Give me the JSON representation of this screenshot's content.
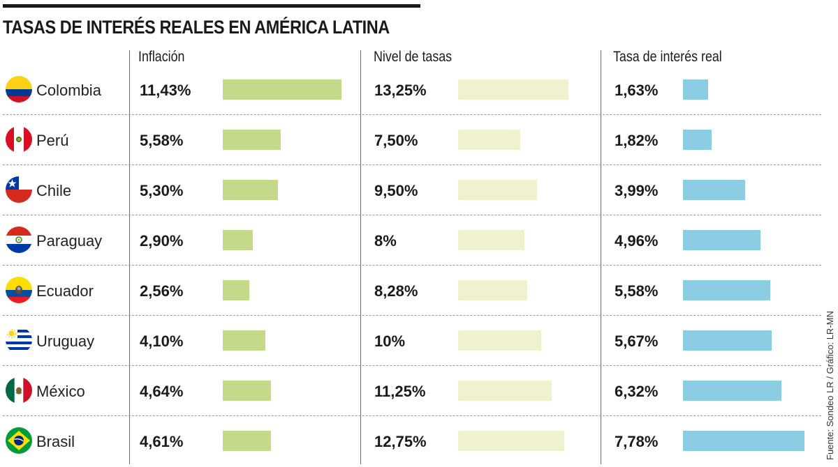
{
  "chart_data": {
    "type": "bar",
    "title": "TASAS DE INTERÉS REALES EN AMÉRICA LATINA",
    "stub_header": "",
    "categories": [
      "Colombia",
      "Perú",
      "Chile",
      "Paraguay",
      "Ecuador",
      "Uruguay",
      "México",
      "Brasil"
    ],
    "flag_icons": [
      "colombia-flag-icon",
      "peru-flag-icon",
      "chile-flag-icon",
      "paraguay-flag-icon",
      "ecuador-flag-icon",
      "uruguay-flag-icon",
      "mexico-flag-icon",
      "brazil-flag-icon"
    ],
    "series": [
      {
        "name": "Inflación",
        "color": "#c5d98a",
        "values": [
          11.43,
          5.58,
          5.3,
          2.9,
          2.56,
          4.1,
          4.64,
          4.61
        ],
        "labels": [
          "11,43%",
          "5,58%",
          "5,30%",
          "2,90%",
          "2,56%",
          "4,10%",
          "4,64%",
          "4,61%"
        ]
      },
      {
        "name": "Nivel de tasas",
        "color": "#eff2cd",
        "values": [
          13.25,
          7.5,
          9.5,
          8.0,
          8.28,
          10.0,
          11.25,
          12.75
        ],
        "labels": [
          "13,25%",
          "7,50%",
          "9,50%",
          "8%",
          "8,28%",
          "10%",
          "11,25%",
          "12,75%"
        ]
      },
      {
        "name": "Tasa de interés real",
        "color": "#8ccde3",
        "values": [
          1.63,
          1.82,
          3.99,
          4.96,
          5.58,
          5.67,
          6.32,
          7.78
        ],
        "labels": [
          "1,63%",
          "1,82%",
          "3,99%",
          "4,96%",
          "5,58%",
          "5,67%",
          "6,32%",
          "7,78%"
        ]
      }
    ],
    "source": "Fuente: Sondeo LR / Gráfico: LR-MN",
    "grid": false,
    "legend": "none"
  }
}
